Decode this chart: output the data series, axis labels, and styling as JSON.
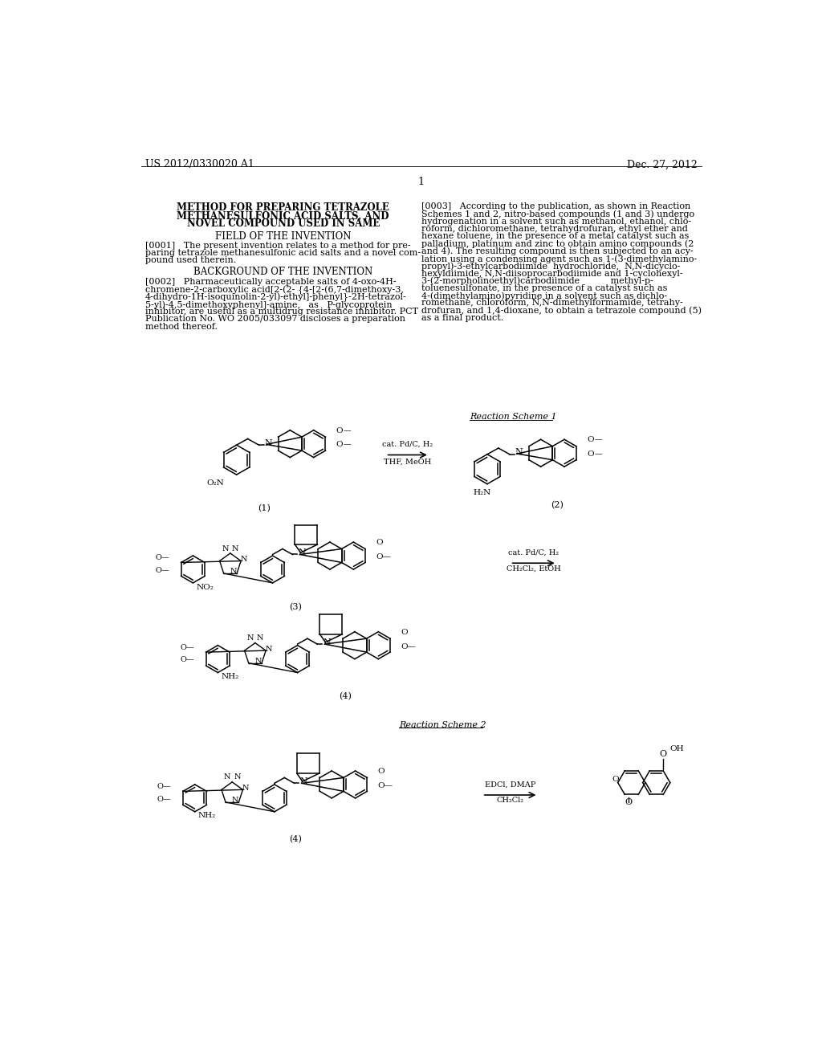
{
  "background_color": "#ffffff",
  "header_left": "US 2012/0330020 A1",
  "header_right": "Dec. 27, 2012",
  "page_number": "1",
  "title_line1": "METHOD FOR PREPARING TETRAZOLE",
  "title_line2": "METHANESULFONIC ACID SALTS, AND",
  "title_line3": "NOVEL COMPOUND USED IN SAME",
  "section1_title": "FIELD OF THE INVENTION",
  "section2_title": "BACKGROUND OF THE INVENTION",
  "para0001_lines": [
    "[0001]   The present invention relates to a method for pre-",
    "paring tetrazole methanesulfonic acid salts and a novel com-",
    "pound used therein."
  ],
  "para0002_lines": [
    "[0002]   Pharmaceutically acceptable salts of 4-oxo-4H-",
    "chromene-2-carboxylic acid[2-(2- {4-[2-(6,7-dimethoxy-3,",
    "4-dihydro-1H-isoquinolin-2-yl)-ethyl]-phenyl}-2H-tetrazol-",
    "5-yl)-4,5-dimethoxyphenyl]-amine,   as   P-glycoprotein",
    "inhibitor, are useful as a multidrug resistance inhibitor. PCT",
    "Publication No. WO 2005/033097 discloses a preparation",
    "method thereof."
  ],
  "para0003_lines": [
    "[0003]   According to the publication, as shown in Reaction",
    "Schemes 1 and 2, nitro-based compounds (1 and 3) undergo",
    "hydrogenation in a solvent such as methanol, ethanol, chlo-",
    "roform, dichloromethane, tetrahydrofuran, ethyl ether and",
    "hexane toluene, in the presence of a metal catalyst such as",
    "palladium, platinum and zinc to obtain amino compounds (2",
    "and 4). The resulting compound is then subjected to an acy-",
    "lation using a condensing agent such as 1-(3-dimethylamino-",
    "propyl)-3-ethylcarbodiimide  hydrochloride,  N,N-dicyclo-",
    "hexyldiimide, N,N-diisoprocarbodiimide and 1-cyclohexyl-",
    "3-(2-morpholinoethyl)carbodiimide           methyl-p-",
    "toluenesulfonate, in the presence of a catalyst such as",
    "4-(dimethylamino)pyridine in a solvent such as dichlo-",
    "romethane, chloroform, N,N-dimethylformamide, tetrahy-",
    "drofuran, and 1,4-dioxane, to obtain a tetrazole compound (5)",
    "as a final product."
  ],
  "scheme1_label": "Reaction Scheme 1",
  "scheme2_label": "Reaction Scheme 2",
  "arrow1_top": "cat. Pd/C, H₂",
  "arrow1_bot": "THF, MeOH",
  "arrow2_top": "cat. Pd/C, H₂",
  "arrow2_bot": "CH₂Cl₂, EtOH",
  "arrow3_top": "EDCl, DMAP",
  "arrow3_bot": "CH₂Cl₂",
  "label1": "(1)",
  "label2": "(2)",
  "label3": "(3)",
  "label4a": "(4)",
  "label4b": "(4)"
}
